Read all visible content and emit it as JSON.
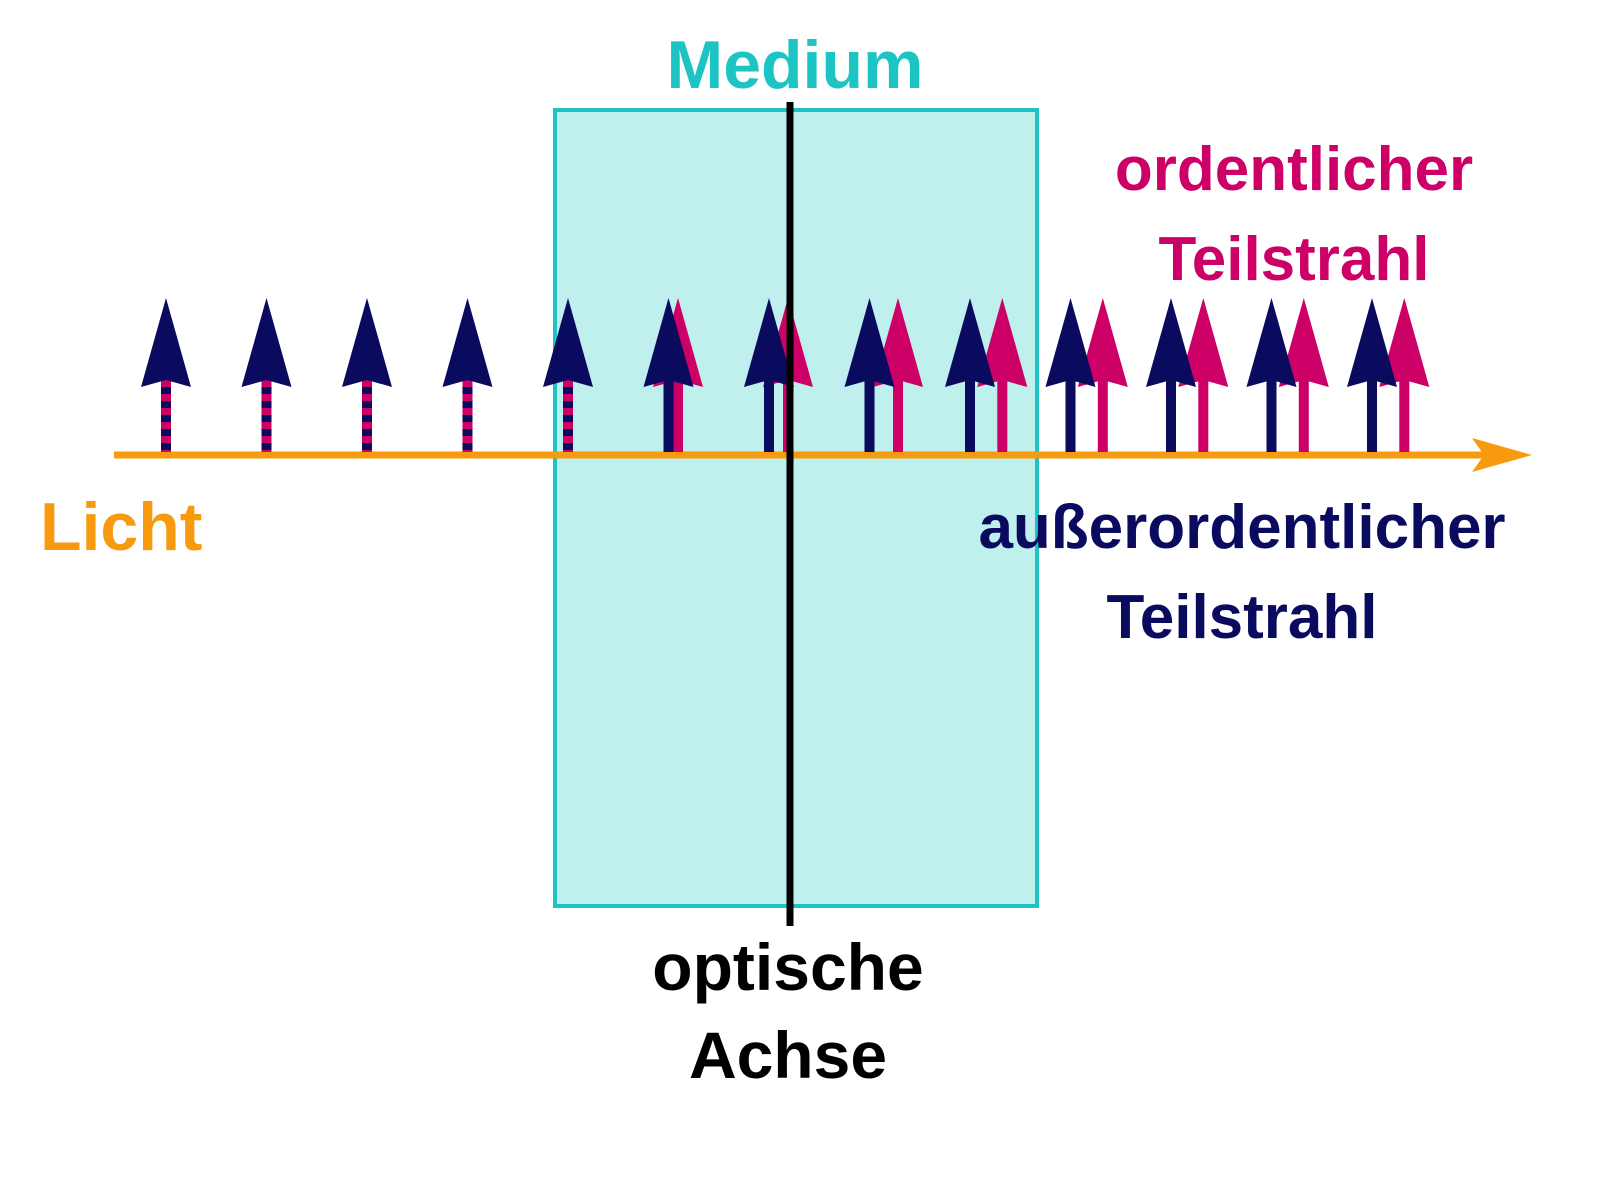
{
  "labels": {
    "medium": "Medium",
    "ordinary_line1": "ordentlicher",
    "ordinary_line2": "Teilstrahl",
    "light": "Licht",
    "extraordinary_line1": "außerordentlicher",
    "extraordinary_line2": "Teilstrahl",
    "axis_line1": "optische",
    "axis_line2": "Achse"
  },
  "colors": {
    "light": "#f79a0e",
    "medium_fill": "#c0f0ee",
    "medium_stroke": "#1cc4c4",
    "optical_axis": "#000000",
    "ordinary": "#cc0066",
    "extraordinary": "#0a0a5e"
  },
  "wave": {
    "arrow_count": 13,
    "combined_arrows_before_medium": 5,
    "offset_step_inside_medium": 9.5
  }
}
